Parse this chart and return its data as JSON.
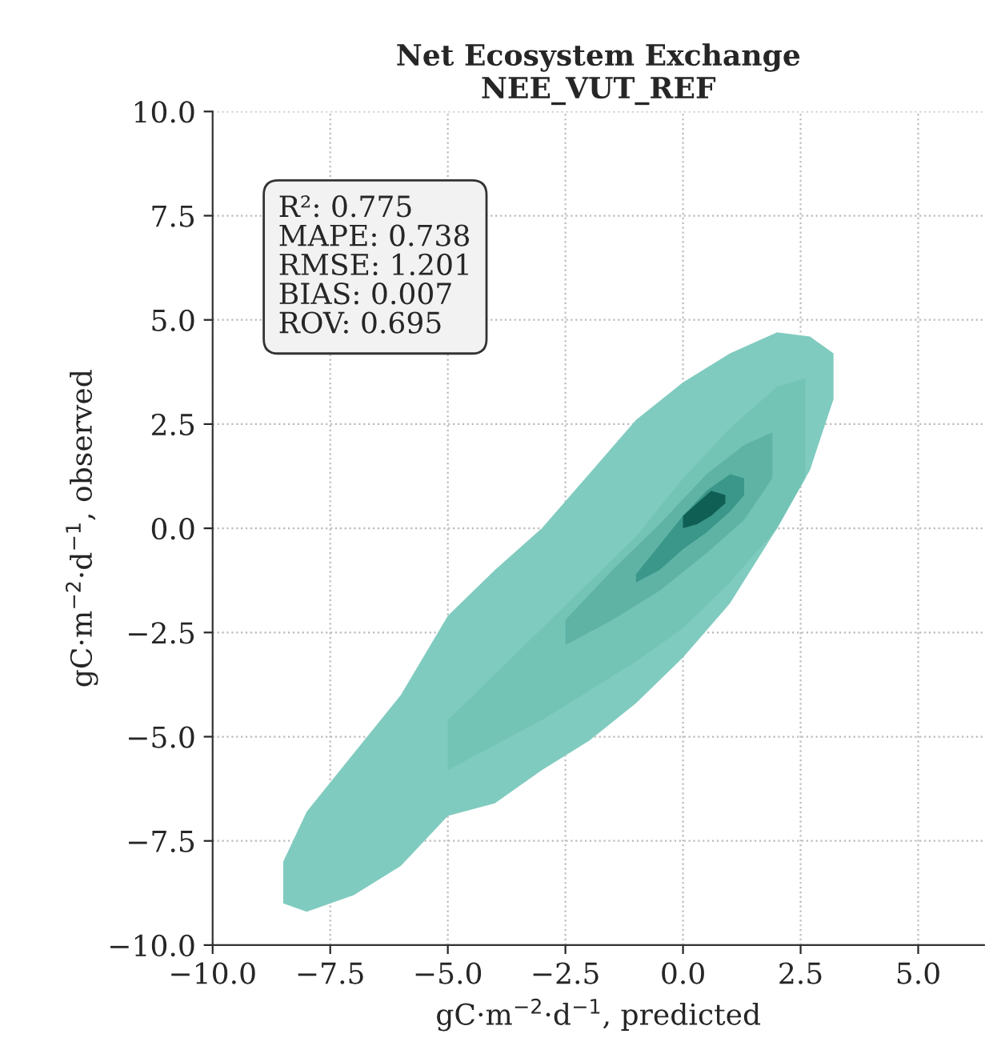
{
  "chart_data": {
    "type": "area",
    "title": "Net Ecosystem Exchange\nNEE_VUT_REF",
    "xlabel": "gC·m$^{−2}$·d$^{−1}$, predicted",
    "ylabel": "gC·m$^{−2}$·d$^{−1}$, observed",
    "annotations": [
      "R²: 0.775",
      "MAPE: 0.738",
      "RMSE: 1.201",
      "BIAS: 0.007",
      "ROV: 0.695"
    ],
    "series": [
      {
        "color": "#80cbbf",
        "x": [
          -8.5,
          -8,
          -7,
          -6,
          -5,
          -4,
          -3,
          -2,
          -1,
          0,
          1,
          2,
          2.7,
          3.2,
          3.2,
          2.7,
          2,
          1,
          0,
          -1,
          -2,
          -3,
          -4,
          -5,
          -6,
          -7,
          -8,
          -8.5
        ],
        "values": [
          -8.0,
          -6.8,
          -5.4,
          -4.0,
          -2.1,
          -1.0,
          0.0,
          1.3,
          2.6,
          3.5,
          4.2,
          4.7,
          4.6,
          4.2,
          3.1,
          1.4,
          0.0,
          -1.8,
          -3.1,
          -4.2,
          -5.1,
          -5.8,
          -6.6,
          -6.9,
          -8.1,
          -8.8,
          -9.2,
          -9.0
        ]
      },
      {
        "color": "#74c4b6",
        "x": [
          -5,
          -3,
          -1,
          0,
          1,
          2,
          2.6,
          2.6,
          2,
          1,
          0,
          -1,
          -3,
          -5
        ],
        "values": [
          -4.6,
          -2.4,
          -0.2,
          1.2,
          2.4,
          3.4,
          3.6,
          1.2,
          0.0,
          -1.3,
          -2.4,
          -3.2,
          -4.6,
          -5.8
        ]
      },
      {
        "color": "#5fb3a5",
        "x": [
          -2.5,
          -1.5,
          -0.5,
          0.5,
          1.3,
          1.9,
          1.9,
          1.3,
          0.5,
          -0.5,
          -1.5,
          -2.5
        ],
        "values": [
          -2.2,
          -1.0,
          0.1,
          1.3,
          2.0,
          2.3,
          1.2,
          0.2,
          -0.6,
          -1.5,
          -2.2,
          -2.8
        ]
      },
      {
        "color": "#3a978a",
        "x": [
          -1,
          -0.5,
          0,
          0.5,
          1,
          1.3,
          1.3,
          1,
          0.5,
          0,
          -0.5,
          -1
        ],
        "values": [
          -1.1,
          -0.4,
          0.3,
          0.9,
          1.3,
          1.2,
          0.8,
          0.4,
          -0.1,
          -0.5,
          -1.0,
          -1.3
        ]
      },
      {
        "color": "#0f5f55",
        "x": [
          0,
          0.3,
          0.6,
          0.9,
          0.9,
          0.6,
          0.3,
          0
        ],
        "values": [
          0.3,
          0.6,
          0.9,
          0.8,
          0.6,
          0.3,
          0.1,
          0.0
        ]
      }
    ],
    "xlim": [
      -10,
      6.4
    ],
    "ylim": [
      -10,
      10
    ],
    "xticks": [
      {
        "value": -10,
        "label": "−10.0"
      },
      {
        "value": -7.5,
        "label": "−7.5"
      },
      {
        "value": -5,
        "label": "−5.0"
      },
      {
        "value": -2.5,
        "label": "−2.5"
      },
      {
        "value": 0,
        "label": "0.0"
      },
      {
        "value": 2.5,
        "label": "2.5"
      },
      {
        "value": 5,
        "label": "5.0"
      }
    ],
    "yticks": [
      {
        "value": -10,
        "label": "−10.0"
      },
      {
        "value": -7.5,
        "label": "−7.5"
      },
      {
        "value": -5,
        "label": "−5.0"
      },
      {
        "value": -2.5,
        "label": "−2.5"
      },
      {
        "value": 0,
        "label": "0.0"
      },
      {
        "value": 2.5,
        "label": "2.5"
      },
      {
        "value": 5,
        "label": "5.0"
      },
      {
        "value": 7.5,
        "label": "7.5"
      },
      {
        "value": 10,
        "label": "10.0"
      }
    ],
    "grid": true
  }
}
